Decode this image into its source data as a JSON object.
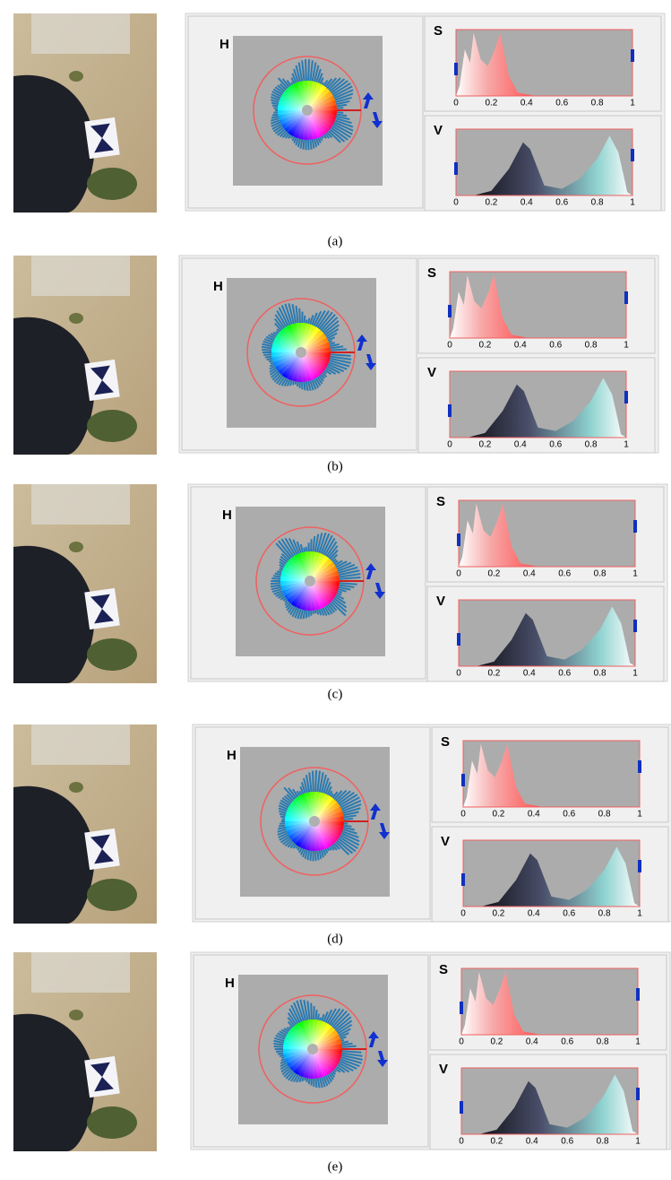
{
  "labels": {
    "h": "H",
    "s": "S",
    "v": "V"
  },
  "axis_ticks": [
    "0",
    "0.2",
    "0.4",
    "0.6",
    "0.8",
    "1"
  ],
  "panels": [
    {
      "caption": "(a)"
    },
    {
      "caption": "(b)"
    },
    {
      "caption": "(c)"
    },
    {
      "caption": "(d)"
    },
    {
      "caption": "(e)"
    }
  ]
}
